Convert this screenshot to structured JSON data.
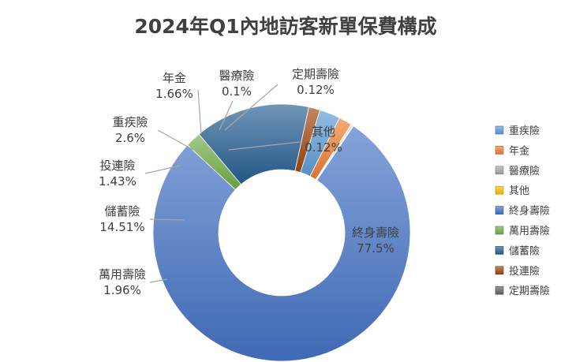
{
  "chart_data": {
    "type": "pie",
    "variant": "doughnut",
    "title": "2024年Q1內地訪客新單保費構成",
    "legend_position": "right",
    "slices": [
      {
        "name": "重疾險",
        "value": 2.6,
        "label": "2.6%",
        "color": "#5b9bd5"
      },
      {
        "name": "年金",
        "value": 1.66,
        "label": "1.66%",
        "color": "#ed7d31"
      },
      {
        "name": "醫療險",
        "value": 0.1,
        "label": "0.1%",
        "color": "#a5a5a5"
      },
      {
        "name": "其他",
        "value": 0.12,
        "label": "0.12%",
        "color": "#ffc000"
      },
      {
        "name": "終身壽險",
        "value": 77.5,
        "label": "77.5%",
        "color": "#4472c4"
      },
      {
        "name": "萬用壽險",
        "value": 1.96,
        "label": "1.96%",
        "color": "#70ad47"
      },
      {
        "name": "儲蓄險",
        "value": 14.51,
        "label": "14.51%",
        "color": "#255e91"
      },
      {
        "name": "投連險",
        "value": 1.43,
        "label": "1.43%",
        "color": "#9e480e"
      },
      {
        "name": "定期壽險",
        "value": 0.12,
        "label": "0.12%",
        "color": "#636363"
      }
    ],
    "draw_order": [
      "其他",
      "終身壽險",
      "萬用壽險",
      "儲蓄險",
      "投連險",
      "重疾險",
      "年金",
      "醫療險",
      "定期壽險"
    ]
  }
}
